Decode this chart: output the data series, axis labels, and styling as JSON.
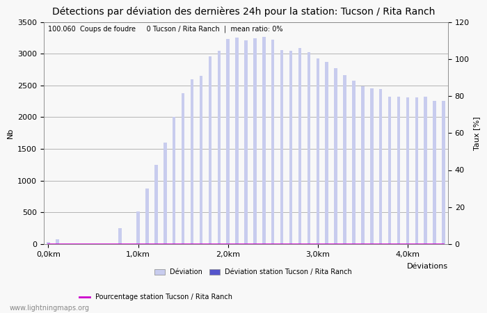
{
  "title": "Détections par déviation des dernières 24h pour la station: Tucson / Rita Ranch",
  "subtitle": "100.060  Coups de foudre     0 Tucson / Rita Ranch  |  mean ratio: 0%",
  "xlabel": "Déviations",
  "ylabel_left": "Nb",
  "ylabel_right": "Taux [%]",
  "watermark": "www.lightningmaps.org",
  "xlim": [
    -0.5,
    44.5
  ],
  "ylim_left": [
    0,
    3500
  ],
  "ylim_right": [
    0,
    120
  ],
  "xtick_positions": [
    0,
    10,
    20,
    30,
    40
  ],
  "xtick_labels": [
    "0,0km",
    "1,0km",
    "2,0km",
    "3,0km",
    "4,0km"
  ],
  "ytick_left": [
    0,
    500,
    1000,
    1500,
    2000,
    2500,
    3000,
    3500
  ],
  "ytick_right": [
    0,
    20,
    40,
    60,
    80,
    100,
    120
  ],
  "bar_color_light": "#c8ccee",
  "bar_color_dark": "#5555cc",
  "line_color": "#cc00cc",
  "grid_color": "#999999",
  "bg_color": "#f8f8f8",
  "overall_heights": [
    30,
    80,
    0,
    0,
    0,
    0,
    0,
    0,
    250,
    0,
    520,
    880,
    1250,
    1600,
    2010,
    2380,
    2600,
    2650,
    2960,
    3040,
    3230,
    3250,
    3210,
    3240,
    3260,
    3220,
    3060,
    3040,
    3090,
    3020,
    2920,
    2870,
    2770,
    2660,
    2570,
    2490,
    2450,
    2440,
    2320,
    2320,
    2310,
    2310,
    2320,
    2260,
    2260
  ],
  "station_heights": [
    0,
    0,
    0,
    0,
    0,
    0,
    0,
    0,
    0,
    0,
    0,
    0,
    0,
    0,
    0,
    0,
    0,
    0,
    0,
    0,
    0,
    0,
    0,
    0,
    0,
    0,
    0,
    0,
    0,
    0,
    0,
    0,
    0,
    0,
    0,
    0,
    0,
    0,
    0,
    0,
    0,
    0,
    0,
    0,
    0
  ],
  "ratio_values": [
    0,
    0,
    0,
    0,
    0,
    0,
    0,
    0,
    0,
    0,
    0,
    0,
    0,
    0,
    0,
    0,
    0,
    0,
    0,
    0,
    0,
    0,
    0,
    0,
    0,
    0,
    0,
    0,
    0,
    0,
    0,
    0,
    0,
    0,
    0,
    0,
    0,
    0,
    0,
    0,
    0,
    0,
    0,
    0,
    0
  ],
  "bar_width": 0.35,
  "legend_deviation_label": "Déviation",
  "legend_station_label": "Déviation station Tucson / Rita Ranch",
  "legend_ratio_label": "Pourcentage station Tucson / Rita Ranch",
  "title_fontsize": 10,
  "axis_fontsize": 8,
  "label_fontsize": 8,
  "tick_fontsize": 8,
  "subtitle_fontsize": 7
}
